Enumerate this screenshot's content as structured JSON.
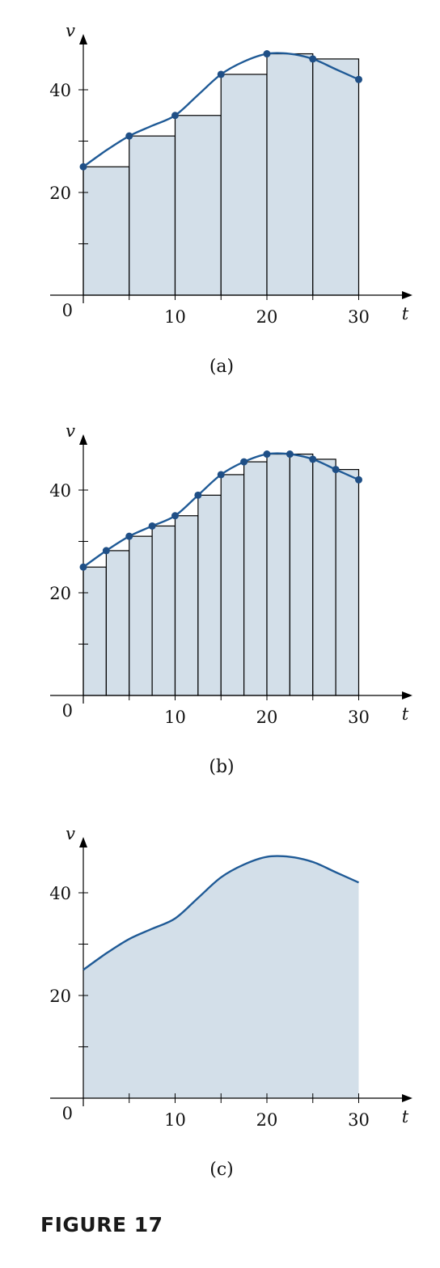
{
  "figure_label": "FIGURE 17",
  "colors": {
    "fill": "#d3dfe9",
    "curve": "#1f5a96",
    "dot": "#1f4f86"
  },
  "chart_data": [
    {
      "type": "bar",
      "caption": "(a)",
      "xlabel": "t",
      "ylabel": "v",
      "xlim": [
        0,
        30
      ],
      "ylim": [
        0,
        47
      ],
      "x_ticks": [
        0,
        5,
        10,
        15,
        20,
        25,
        30
      ],
      "x_tick_labels": [
        "10",
        "20",
        "30"
      ],
      "y_ticks": [
        10,
        20,
        30,
        40
      ],
      "y_tick_labels": [
        "20",
        "40"
      ],
      "origin_label": "0",
      "curve": {
        "x": [
          0,
          2.5,
          5,
          7.5,
          10,
          12.5,
          15,
          17.5,
          20,
          22.5,
          25,
          27.5,
          30
        ],
        "y": [
          25,
          28.2,
          31,
          33,
          35,
          39,
          43,
          45.5,
          47,
          47,
          46,
          44,
          42
        ]
      },
      "rectangles": {
        "left_endpoints": [
          0,
          5,
          10,
          15,
          20,
          25
        ],
        "width": 5,
        "heights": [
          25,
          31,
          35,
          43,
          47,
          46
        ]
      },
      "points": {
        "x": [
          0,
          5,
          10,
          15,
          20,
          25,
          30
        ],
        "y": [
          25,
          31,
          35,
          43,
          47,
          46,
          42
        ]
      }
    },
    {
      "type": "bar",
      "caption": "(b)",
      "xlabel": "t",
      "ylabel": "v",
      "xlim": [
        0,
        30
      ],
      "ylim": [
        0,
        47
      ],
      "x_ticks": [
        0,
        5,
        10,
        15,
        20,
        25,
        30
      ],
      "x_tick_labels": [
        "10",
        "20",
        "30"
      ],
      "y_ticks": [
        10,
        20,
        30,
        40
      ],
      "y_tick_labels": [
        "20",
        "40"
      ],
      "origin_label": "0",
      "curve": {
        "x": [
          0,
          2.5,
          5,
          7.5,
          10,
          12.5,
          15,
          17.5,
          20,
          22.5,
          25,
          27.5,
          30
        ],
        "y": [
          25,
          28.2,
          31,
          33,
          35,
          39,
          43,
          45.5,
          47,
          47,
          46,
          44,
          42
        ]
      },
      "rectangles": {
        "left_endpoints": [
          0,
          2.5,
          5,
          7.5,
          10,
          12.5,
          15,
          17.5,
          20,
          22.5,
          25,
          27.5
        ],
        "width": 2.5,
        "heights": [
          25,
          28.2,
          31,
          33,
          35,
          39,
          43,
          45.5,
          47,
          47,
          46,
          44
        ]
      },
      "points": {
        "x": [
          0,
          2.5,
          5,
          7.5,
          10,
          12.5,
          15,
          17.5,
          20,
          22.5,
          25,
          27.5,
          30
        ],
        "y": [
          25,
          28.2,
          31,
          33,
          35,
          39,
          43,
          45.5,
          47,
          47,
          46,
          44,
          42
        ]
      }
    },
    {
      "type": "area",
      "caption": "(c)",
      "xlabel": "t",
      "ylabel": "v",
      "xlim": [
        0,
        30
      ],
      "ylim": [
        0,
        47
      ],
      "x_ticks": [
        0,
        5,
        10,
        15,
        20,
        25,
        30
      ],
      "x_tick_labels": [
        "10",
        "20",
        "30"
      ],
      "y_ticks": [
        10,
        20,
        30,
        40
      ],
      "y_tick_labels": [
        "20",
        "40"
      ],
      "origin_label": "0",
      "curve": {
        "x": [
          0,
          2.5,
          5,
          7.5,
          10,
          12.5,
          15,
          17.5,
          20,
          22.5,
          25,
          27.5,
          30
        ],
        "y": [
          25,
          28.2,
          31,
          33,
          35,
          39,
          43,
          45.5,
          47,
          47,
          46,
          44,
          42
        ]
      },
      "rectangles": null,
      "points": null
    }
  ]
}
